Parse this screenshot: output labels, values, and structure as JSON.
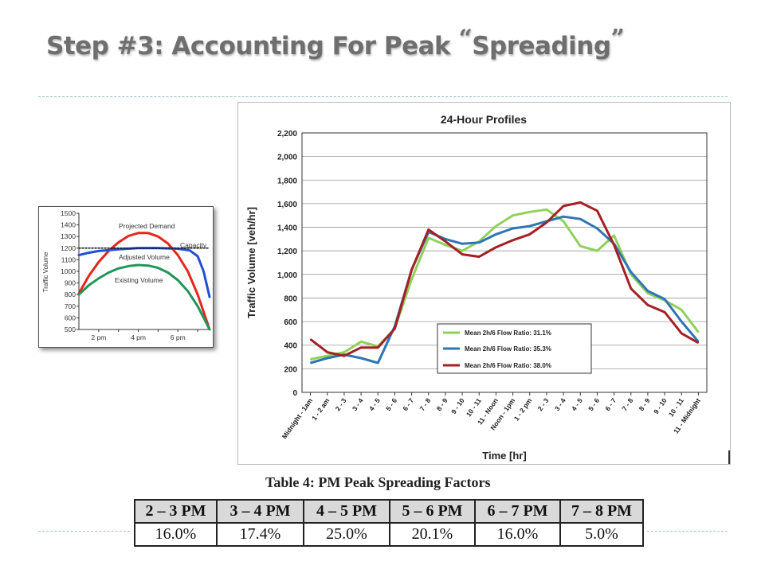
{
  "slide": {
    "title_main": "Step #3: Accounting For Peak ",
    "open_quote": "“",
    "title_word": "Spreading",
    "close_quote": "”"
  },
  "small_chart": {
    "chart_data": {
      "type": "line",
      "ylabel": "Traffic Volume",
      "yticks": [
        500,
        600,
        700,
        800,
        900,
        1000,
        1100,
        1200,
        1300,
        1400,
        1500
      ],
      "ylim": [
        500,
        1500
      ],
      "xticks": [
        "2 pm",
        "4 pm",
        "6 pm"
      ],
      "xlim": [
        1,
        7.6
      ],
      "grid": false,
      "annotations": [
        "Projected Demand",
        "Capacity",
        "Adjusted Volume",
        "Existing Volume"
      ],
      "series": [
        {
          "name": "Projected Demand",
          "color": "#e8251c",
          "x": [
            1,
            1.5,
            2,
            2.5,
            3,
            3.5,
            4,
            4.5,
            5,
            5.5,
            6,
            6.5,
            7,
            7.6
          ],
          "y": [
            810,
            960,
            1080,
            1175,
            1250,
            1305,
            1330,
            1330,
            1300,
            1240,
            1140,
            1000,
            800,
            500
          ]
        },
        {
          "name": "Existing Volume",
          "color": "#21965a",
          "x": [
            1,
            1.5,
            2,
            2.5,
            3,
            3.5,
            4,
            4.5,
            5,
            5.5,
            6,
            6.5,
            7,
            7.6
          ],
          "y": [
            800,
            880,
            940,
            990,
            1025,
            1045,
            1055,
            1050,
            1030,
            990,
            925,
            830,
            700,
            500
          ]
        },
        {
          "name": "Adjusted Volume",
          "color": "#1e4fd6",
          "x": [
            1,
            1.5,
            2,
            3,
            4,
            5,
            6,
            6.6,
            7,
            7.3,
            7.6
          ],
          "y": [
            1140,
            1160,
            1175,
            1190,
            1200,
            1200,
            1195,
            1180,
            1130,
            1000,
            780
          ]
        },
        {
          "name": "Capacity",
          "color": "#111111",
          "dashed": true,
          "x": [
            1,
            7.6
          ],
          "y": [
            1200,
            1200
          ]
        }
      ]
    }
  },
  "main_chart": {
    "chart_data": {
      "type": "line",
      "title": "24-Hour Profiles",
      "xlabel": "Time [hr]",
      "ylabel": "Traffic Volume  [veh/hr]",
      "ylim": [
        0,
        2200
      ],
      "yticks": [
        "0",
        "200",
        "400",
        "600",
        "800",
        "1,000",
        "1,200",
        "1,400",
        "1,600",
        "1,800",
        "2,000",
        "2,200"
      ],
      "categories": [
        "Midnight - 1am",
        "1 - 2 am",
        "2 - 3",
        "3 - 4",
        "4 - 5",
        "5 - 6",
        "6 - 7",
        "7 - 8",
        "8 - 9",
        "9 - 10",
        "10 - 11",
        "11 - Noon",
        "Noon - 1pm",
        "1 - 2 pm",
        "2 - 3",
        "3 - 4",
        "4 - 5",
        "5 - 6",
        "6 - 7",
        "7 - 8",
        "8 - 9",
        "9 - 10",
        "10 - 11",
        "11 - Midnight"
      ],
      "grid": true,
      "legend_position": "lower-right",
      "series": [
        {
          "name": "Mean 2h/6 Flow Ratio: 31.1%",
          "color": "#8fd15a",
          "values": [
            280,
            310,
            340,
            430,
            390,
            540,
            960,
            1310,
            1250,
            1200,
            1280,
            1410,
            1500,
            1530,
            1550,
            1450,
            1240,
            1200,
            1330,
            1000,
            840,
            780,
            700,
            510
          ]
        },
        {
          "name": "Mean 2h/6 Flow Ratio: 35.3%",
          "color": "#2e75b6",
          "values": [
            250,
            290,
            320,
            290,
            250,
            560,
            1040,
            1360,
            1300,
            1260,
            1270,
            1340,
            1390,
            1410,
            1450,
            1490,
            1470,
            1390,
            1260,
            1020,
            860,
            790,
            600,
            430
          ]
        },
        {
          "name": "Mean 2h/6 Flow Ratio: 38.0%",
          "color": "#a42025",
          "values": [
            450,
            340,
            310,
            380,
            380,
            540,
            1040,
            1380,
            1280,
            1170,
            1150,
            1230,
            1290,
            1340,
            1440,
            1580,
            1610,
            1540,
            1250,
            880,
            740,
            680,
            500,
            420
          ]
        }
      ]
    }
  },
  "table": {
    "caption": "Table 4: PM Peak Spreading Factors",
    "headers": [
      "2 – 3 PM",
      "3 – 4 PM",
      "4 – 5 PM",
      "5 – 6 PM",
      "6 – 7 PM",
      "7 – 8 PM"
    ],
    "values": [
      "16.0%",
      "17.4%",
      "25.0%",
      "20.1%",
      "16.0%",
      "5.0%"
    ]
  }
}
